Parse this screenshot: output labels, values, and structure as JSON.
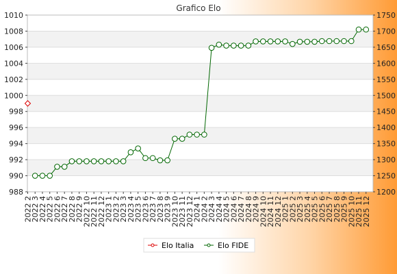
{
  "chart_data": {
    "type": "line",
    "title": "Grafico Elo",
    "categories": [
      "2022 2",
      "2022 3",
      "2022 4",
      "2022 5",
      "2022 6",
      "2022 7",
      "2022 8",
      "2022 9",
      "2022 10",
      "2022 11",
      "2022 12",
      "2023 1",
      "2023 2",
      "2023 3",
      "2023 4",
      "2023 5",
      "2023 6",
      "2023 7",
      "2023 8",
      "2023 9",
      "2023 10",
      "2023 11",
      "2023 12",
      "2024 1",
      "2024 2",
      "2024 3",
      "2024 4",
      "2024 5",
      "2024 6",
      "2024 7",
      "2024 8",
      "2024 9",
      "2024 10",
      "2024 11",
      "2024 12",
      "2025 1",
      "2025 2",
      "2025 3",
      "2025 4",
      "2025 5",
      "2025 6",
      "2025 7",
      "2025 8",
      "2025 9",
      "2025 10",
      "2025 11",
      "2025 12"
    ],
    "y_left_range": [
      988,
      1010
    ],
    "y_left_ticks": [
      988,
      990,
      992,
      994,
      996,
      998,
      1000,
      1002,
      1004,
      1006,
      1008,
      1010
    ],
    "y_right_range": [
      1200,
      1750
    ],
    "y_right_ticks": [
      1200,
      1250,
      1300,
      1350,
      1400,
      1450,
      1500,
      1550,
      1600,
      1650,
      1700,
      1750
    ],
    "grid": true,
    "legend_position": "bottom-center",
    "series": [
      {
        "name": "Elo Italia",
        "axis": "left",
        "color": "#dd0000",
        "values": [
          999,
          null,
          null,
          null,
          null,
          null,
          null,
          null,
          null,
          null,
          null,
          null,
          null,
          null,
          null,
          null,
          null,
          null,
          null,
          null,
          null,
          null,
          null,
          null,
          null,
          null,
          null,
          null,
          null,
          null,
          null,
          null,
          null,
          null,
          null,
          null,
          null,
          null,
          null,
          null,
          null,
          null,
          null,
          null,
          null,
          null,
          null
        ]
      },
      {
        "name": "Elo FIDE",
        "axis": "right",
        "color": "#006600",
        "values": [
          null,
          1250,
          1250,
          1250,
          1278,
          1278,
          1295,
          1295,
          1295,
          1295,
          1295,
          1295,
          1295,
          1295,
          1323,
          1335,
          1305,
          1305,
          1298,
          1298,
          1365,
          1365,
          1378,
          1378,
          1378,
          1648,
          1658,
          1655,
          1655,
          1655,
          1655,
          1668,
          1668,
          1668,
          1668,
          1668,
          1660,
          1667,
          1667,
          1667,
          1669,
          1669,
          1669,
          1669,
          1669,
          1705,
          1705
        ]
      }
    ]
  }
}
